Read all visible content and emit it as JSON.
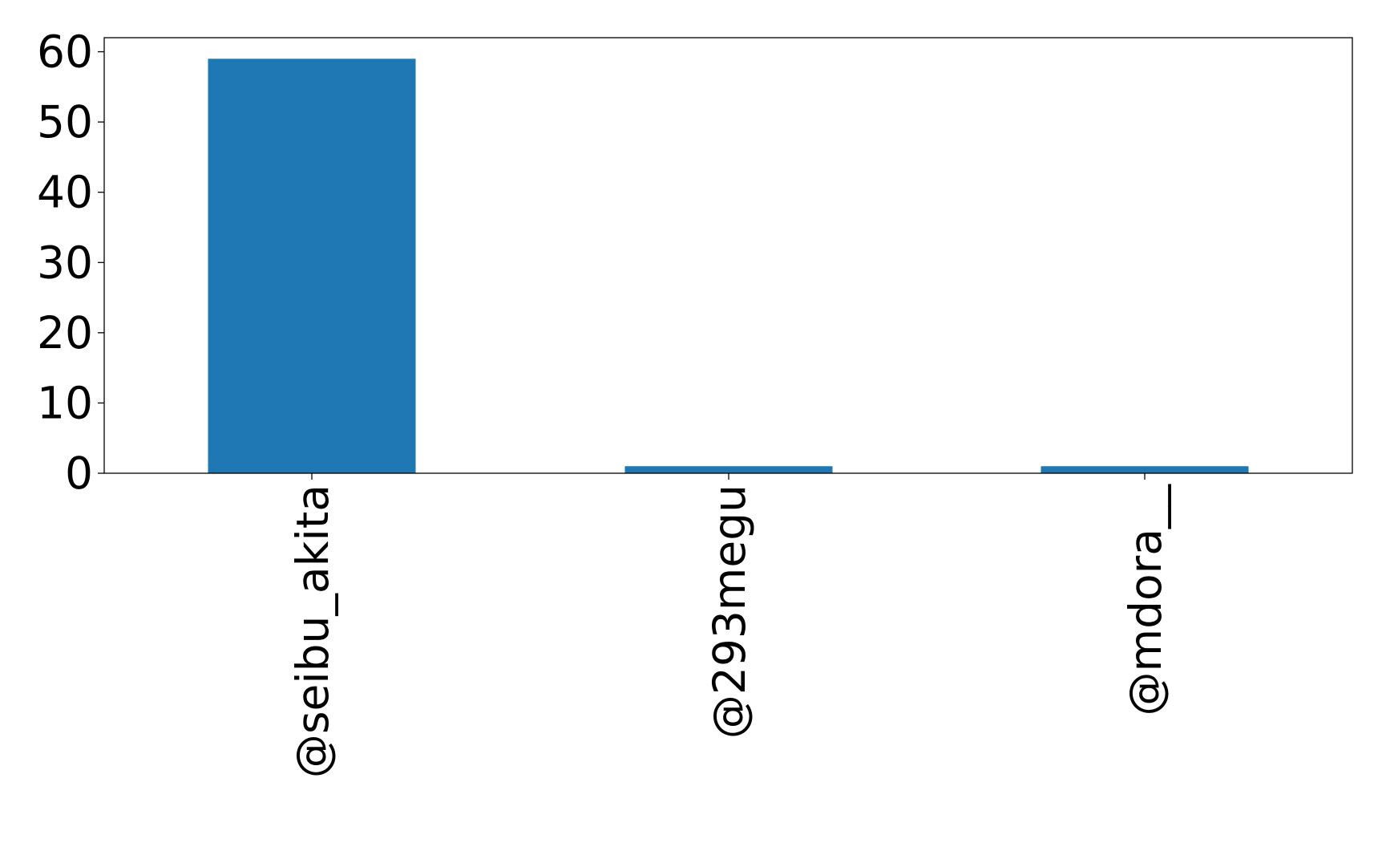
{
  "chart_data": {
    "type": "bar",
    "title": "",
    "xlabel": "",
    "ylabel": "",
    "categories": [
      "@seibu_akita",
      "@293megu",
      "@mdora__"
    ],
    "values": [
      59,
      1,
      1
    ],
    "ylim": [
      0,
      62
    ],
    "yticks": [
      0,
      10,
      20,
      30,
      40,
      50,
      60
    ],
    "grid": false,
    "bar_color": "#1f77b4"
  }
}
